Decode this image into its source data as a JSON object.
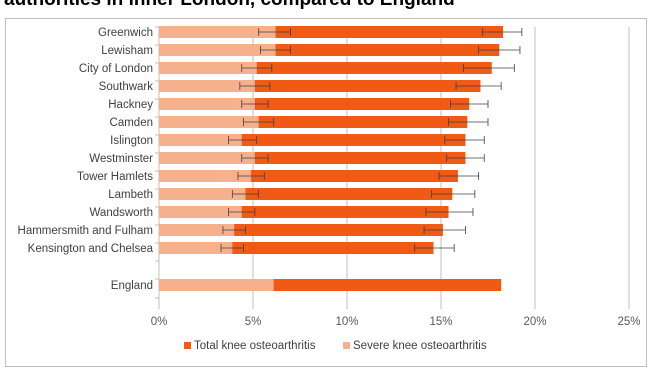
{
  "title": "authorities in inner London, compared to England",
  "colors": {
    "total": "#f05a14",
    "severe": "#f7b08c",
    "grid": "#bfbfbf",
    "error_bar": "#404040"
  },
  "chart_data": {
    "type": "bar",
    "orientation": "horizontal",
    "categories": [
      "Greenwich",
      "Lewisham",
      "City of London",
      "Southwark",
      "Hackney",
      "Camden",
      "Islington",
      "Westminster",
      "Tower Hamlets",
      "Lambeth",
      "Wandsworth",
      "Hammersmith and Fulham",
      "Kensington and Chelsea",
      "England"
    ],
    "series": [
      {
        "name": "Total knee osteoarthritis",
        "values": [
          18.3,
          18.1,
          17.7,
          17.1,
          16.5,
          16.4,
          16.3,
          16.3,
          15.9,
          15.6,
          15.4,
          15.1,
          14.6,
          18.2
        ],
        "error_low": [
          17.2,
          17.0,
          16.2,
          15.8,
          15.5,
          15.4,
          15.2,
          15.3,
          14.9,
          14.5,
          14.2,
          14.1,
          13.6,
          null
        ],
        "error_high": [
          19.3,
          19.2,
          18.9,
          18.2,
          17.5,
          17.5,
          17.3,
          17.3,
          17.0,
          16.8,
          16.7,
          16.3,
          15.7,
          null
        ]
      },
      {
        "name": "Severe knee osteoarthritis",
        "values": [
          6.2,
          6.2,
          5.2,
          5.1,
          5.1,
          5.3,
          4.4,
          5.1,
          4.9,
          4.6,
          4.4,
          4.0,
          3.9,
          6.1
        ],
        "error_low": [
          5.3,
          5.4,
          4.4,
          4.3,
          4.4,
          4.5,
          3.7,
          4.4,
          4.2,
          3.9,
          3.7,
          3.4,
          3.3,
          null
        ],
        "error_high": [
          7.0,
          7.0,
          6.0,
          5.9,
          5.8,
          6.1,
          5.2,
          5.8,
          5.6,
          5.3,
          5.1,
          4.6,
          4.5,
          null
        ]
      }
    ],
    "xlim": [
      0,
      25
    ],
    "x_ticks": [
      "0%",
      "5%",
      "10%",
      "15%",
      "20%",
      "25%"
    ],
    "grid": true,
    "legend_position": "bottom"
  }
}
